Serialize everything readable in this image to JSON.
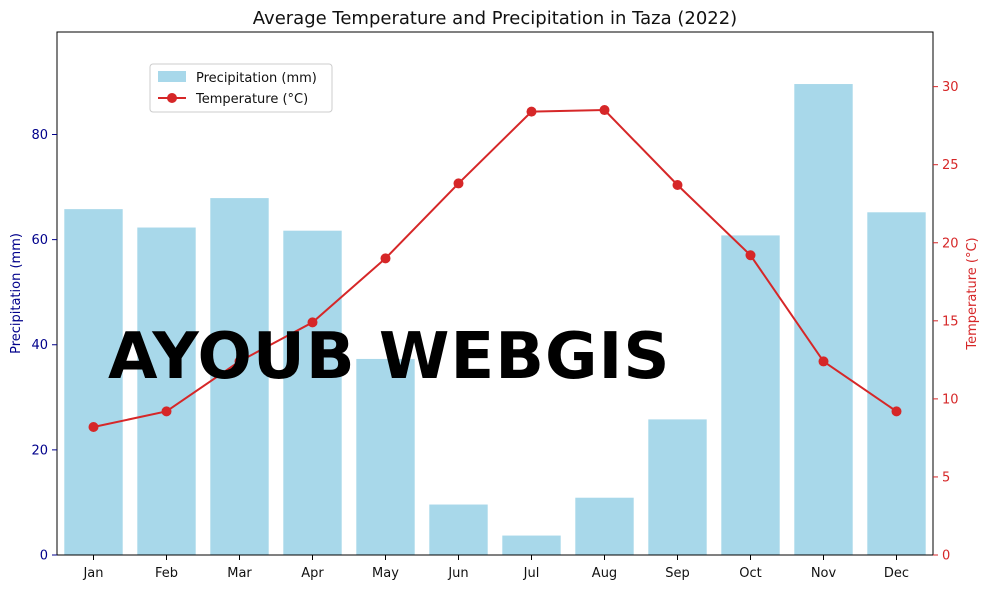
{
  "chart_data": {
    "type": "bar+line",
    "title": "Average Temperature and Precipitation in Taza (2022)",
    "categories": [
      "Jan",
      "Feb",
      "Mar",
      "Apr",
      "May",
      "Jun",
      "Jul",
      "Aug",
      "Sep",
      "Oct",
      "Nov",
      "Dec"
    ],
    "series": [
      {
        "name": "Precipitation (mm)",
        "type": "bar",
        "axis": "left",
        "color": "#a8d8ea",
        "values": [
          65.8,
          62.3,
          67.9,
          61.7,
          37.3,
          9.6,
          3.7,
          10.9,
          25.8,
          60.8,
          89.6,
          65.2
        ]
      },
      {
        "name": "Temperature (°C)",
        "type": "line",
        "axis": "right",
        "color": "#d62728",
        "marker": "circle",
        "values": [
          8.2,
          9.2,
          12.4,
          14.9,
          19.0,
          23.8,
          28.4,
          28.5,
          23.7,
          19.2,
          12.4,
          9.2
        ]
      }
    ],
    "ylabel": "Precipitation (mm)",
    "ylabel_color": "#00008b",
    "ylim": [
      0,
      99.5
    ],
    "yticks": [
      0,
      20,
      40,
      60,
      80
    ],
    "y2label": "Temperature (°C)",
    "y2label_color": "#d62728",
    "y2lim": [
      0,
      33.5
    ],
    "y2ticks": [
      0,
      5,
      10,
      15,
      20,
      25,
      30
    ],
    "grid": false,
    "legend_position": "top-left"
  },
  "watermark": "AYOUB WEBGIS"
}
